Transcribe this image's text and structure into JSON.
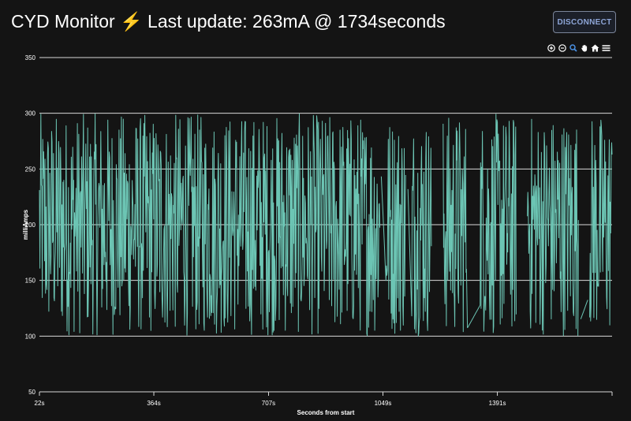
{
  "header": {
    "title": "CYD Monitor ⚡ Last update: 263mA @ 1734seconds",
    "disconnect_label": "DISCONNECT"
  },
  "toolbar": {
    "icons": [
      "zoom-in-icon",
      "zoom-out-icon",
      "zoom-select-icon",
      "pan-hand-icon",
      "home-icon",
      "menu-icon"
    ]
  },
  "colors": {
    "background": "#141414",
    "line": "#6cc5b4",
    "grid": "#d9d9d9",
    "button_text": "#8ea6d8"
  },
  "chart_data": {
    "type": "line",
    "xlabel": "Seconds from start",
    "ylabel": "milliAmps",
    "ylim": [
      50,
      350
    ],
    "xlim": [
      22,
      1734
    ],
    "yticks": [
      50,
      100,
      150,
      200,
      250,
      300,
      350
    ],
    "xticks": [
      22,
      364,
      707,
      1049,
      1391
    ],
    "xtick_labels": [
      "22s",
      "364s",
      "707s",
      "1049s",
      "1391s"
    ],
    "grid": "horizontal",
    "series": [
      {
        "color": "#6cc5b4",
        "min": 100,
        "max": 300,
        "last_value": 263,
        "last_time": 1734,
        "gaps": [
          [
            1040,
            1055
          ],
          [
            1117,
            1133
          ],
          [
            1195,
            1228
          ],
          [
            1312,
            1337
          ],
          [
            1448,
            1480
          ],
          [
            1634,
            1667
          ]
        ],
        "smooth_segments": [
          [
            1043,
            1058,
            250,
            150
          ],
          [
            1123,
            1136,
            240,
            108
          ],
          [
            1303,
            1340,
            108,
            128
          ],
          [
            1640,
            1662,
            115,
            133
          ]
        ]
      }
    ]
  }
}
